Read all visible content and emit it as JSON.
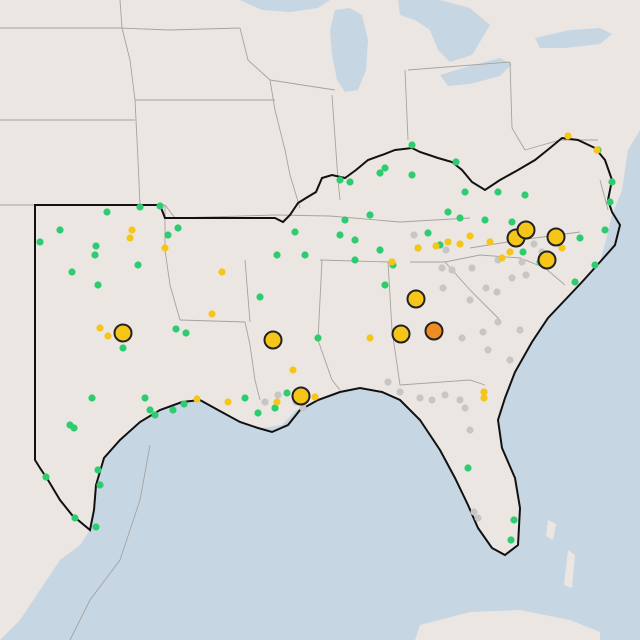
{
  "map": {
    "colors": {
      "water": "#c7d6e3",
      "land": "#ebe6e1",
      "state_border": "#a7a29d",
      "region_border": "#111111",
      "dot_green": "#2ecc71",
      "dot_yellow": "#f5c518",
      "dot_gray": "#c6c6c6",
      "dot_orange": "#ef8d22",
      "large_stroke": "#222222"
    },
    "marker_types": [
      "green",
      "yellow",
      "gray",
      "large-yellow",
      "large-orange"
    ]
  }
}
